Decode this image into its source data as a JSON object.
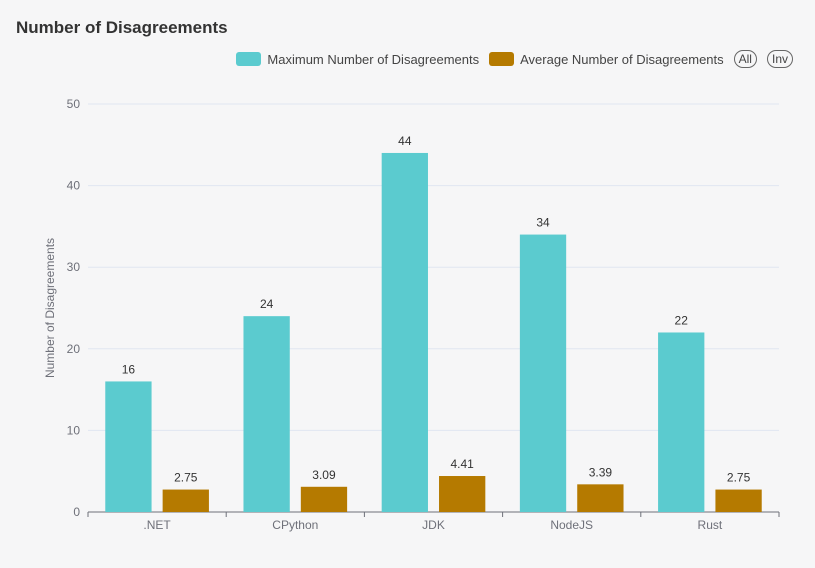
{
  "title": "Number of Disagreements",
  "legend_buttons": {
    "all": "All",
    "inverse": "Inv"
  },
  "chart_data": {
    "type": "bar",
    "categories": [
      ".NET",
      "CPython",
      "JDK",
      "NodeJS",
      "Rust"
    ],
    "series": [
      {
        "name": "Maximum Number of Disagreements",
        "color": "#5bcbcf",
        "values": [
          16,
          24,
          44,
          34,
          22
        ],
        "labels": [
          "16",
          "24",
          "44",
          "34",
          "22"
        ]
      },
      {
        "name": "Average Number of Disagreements",
        "color": "#b57a00",
        "values": [
          2.75,
          3.09,
          4.41,
          3.39,
          2.75
        ],
        "labels": [
          "2.75",
          "3.09",
          "4.41",
          "3.39",
          "2.75"
        ]
      }
    ],
    "title": "Number of Disagreements",
    "xlabel": "",
    "ylabel": "Number of Disagreements",
    "ylim": [
      0,
      50
    ],
    "yticks": [
      0,
      10,
      20,
      30,
      40,
      50
    ],
    "ytick_labels": [
      "0",
      "10",
      "20",
      "30",
      "40",
      "50"
    ],
    "grid": true,
    "legend_position": "top-right"
  }
}
